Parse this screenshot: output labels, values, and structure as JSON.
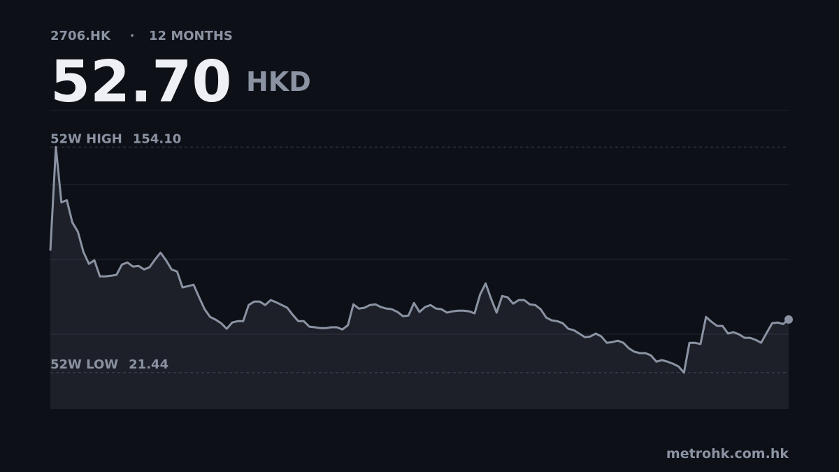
{
  "header": {
    "ticker": "2706.HK",
    "separator": "·",
    "period": "12 MONTHS",
    "price": "52.70",
    "currency": "HKD"
  },
  "chart_data": {
    "type": "area",
    "color": "#8b93a3",
    "values": [
      93.2,
      154.1,
      121.6,
      122.8,
      109.7,
      104.3,
      92.4,
      85.4,
      87.5,
      78.0,
      78.0,
      78.4,
      78.9,
      85.0,
      86.2,
      83.8,
      84.2,
      82.1,
      83.4,
      87.9,
      92.0,
      87.5,
      82.1,
      80.9,
      71.5,
      72.3,
      73.1,
      65.7,
      58.7,
      54.2,
      52.6,
      50.5,
      47.2,
      50.9,
      51.7,
      51.7,
      61.2,
      63.2,
      63.2,
      61.2,
      64.1,
      62.8,
      61.2,
      59.6,
      55.4,
      51.7,
      51.7,
      48.5,
      48.1,
      47.6,
      47.6,
      48.1,
      48.1,
      46.8,
      49.3,
      61.6,
      59.1,
      59.6,
      61.2,
      61.6,
      60.0,
      59.1,
      58.7,
      57.1,
      54.6,
      55.0,
      62.4,
      57.1,
      60.0,
      61.2,
      59.1,
      58.7,
      56.7,
      57.5,
      57.9,
      57.9,
      57.5,
      56.3,
      67.4,
      73.9,
      64.9,
      56.7,
      66.5,
      65.7,
      62.0,
      64.1,
      64.1,
      61.6,
      61.2,
      58.7,
      53.8,
      52.2,
      51.7,
      50.5,
      47.2,
      46.4,
      44.4,
      42.3,
      42.7,
      44.4,
      42.7,
      39.0,
      39.4,
      40.2,
      39.0,
      35.7,
      33.7,
      32.9,
      32.9,
      31.6,
      27.9,
      28.8,
      27.9,
      26.7,
      25.1,
      21.44,
      39.0,
      39.0,
      38.2,
      54.2,
      51.3,
      48.9,
      48.9,
      44.4,
      45.2,
      43.9,
      41.9,
      41.9,
      40.7,
      39.0,
      44.8,
      50.5,
      50.9,
      50.0,
      52.7
    ],
    "ylim": [
      0,
      176
    ],
    "yticks": [
      44,
      88,
      132
    ],
    "grid": true,
    "high": {
      "label": "52W HIGH",
      "value": 154.1,
      "value_label": "154.10"
    },
    "low": {
      "label": "52W LOW",
      "value": 21.44,
      "value_label": "21.44"
    }
  },
  "footer": {
    "source": "metrohk.com.hk"
  }
}
